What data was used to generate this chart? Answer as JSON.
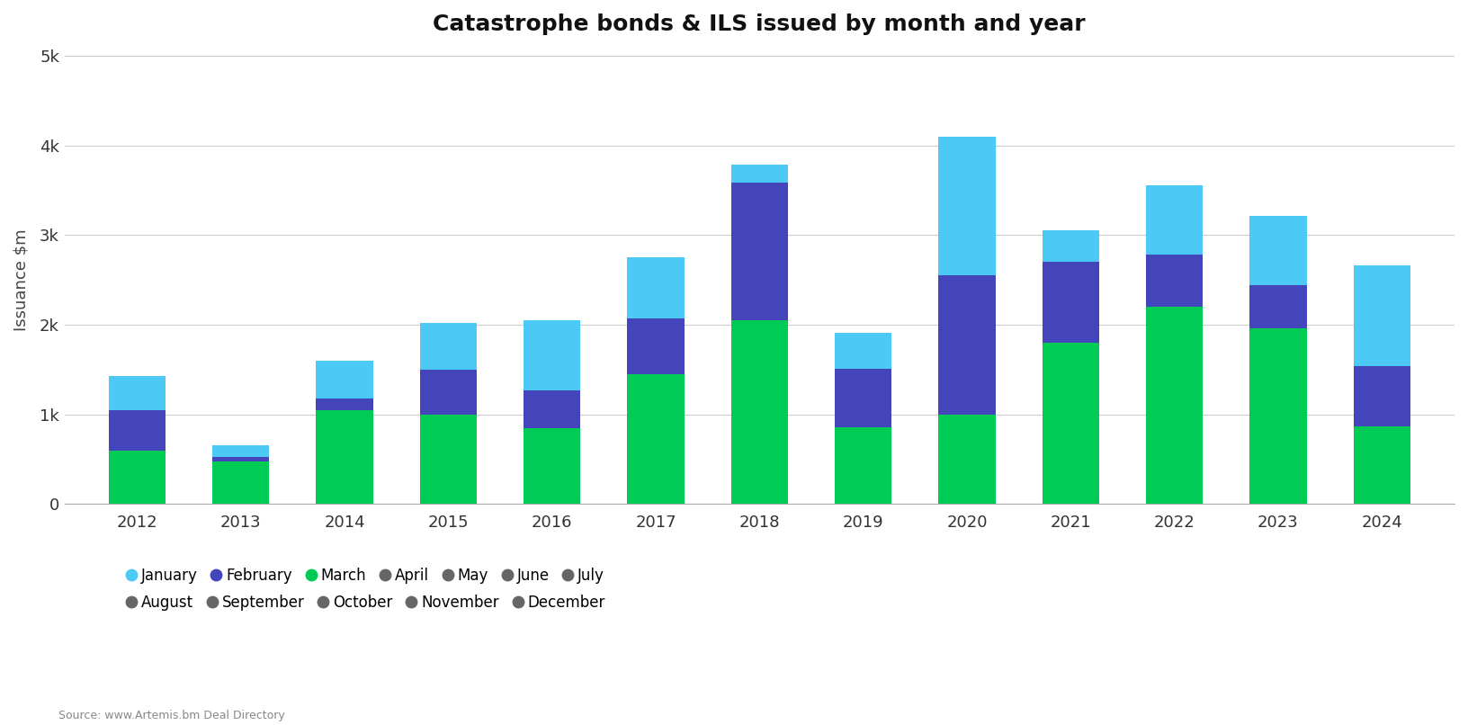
{
  "title": "Catastrophe bonds & ILS issued by month and year",
  "ylabel": "Issuance $m",
  "source": "Source: www.Artemis.bm Deal Directory",
  "years": [
    2012,
    2013,
    2014,
    2015,
    2016,
    2017,
    2018,
    2019,
    2020,
    2021,
    2022,
    2023,
    2024
  ],
  "months": [
    "January",
    "February",
    "March",
    "April",
    "May",
    "June",
    "July",
    "August",
    "September",
    "October",
    "November",
    "December"
  ],
  "colors": {
    "January": "#4dc9f6",
    "February": "#4444bb",
    "March": "#00cc55",
    "April": "#666666",
    "May": "#666666",
    "June": "#666666",
    "July": "#666666",
    "August": "#666666",
    "September": "#666666",
    "October": "#666666",
    "November": "#666666",
    "December": "#666666"
  },
  "stack_order": [
    "March",
    "February",
    "January",
    "April",
    "May",
    "June",
    "July",
    "August",
    "September",
    "October",
    "November",
    "December"
  ],
  "data": {
    "March": [
      600,
      480,
      1050,
      1000,
      850,
      1450,
      2050,
      860,
      1000,
      1800,
      2200,
      1960,
      870
    ],
    "February": [
      450,
      50,
      130,
      500,
      420,
      620,
      1530,
      650,
      1550,
      900,
      580,
      480,
      670
    ],
    "January": [
      380,
      130,
      420,
      520,
      780,
      680,
      200,
      400,
      1550,
      350,
      770,
      770,
      1120
    ],
    "April": [
      0,
      0,
      0,
      0,
      0,
      0,
      0,
      0,
      0,
      0,
      0,
      0,
      0
    ],
    "May": [
      0,
      0,
      0,
      0,
      0,
      0,
      0,
      0,
      0,
      0,
      0,
      0,
      0
    ],
    "June": [
      0,
      0,
      0,
      0,
      0,
      0,
      0,
      0,
      0,
      0,
      0,
      0,
      0
    ],
    "July": [
      0,
      0,
      0,
      0,
      0,
      0,
      0,
      0,
      0,
      0,
      0,
      0,
      0
    ],
    "August": [
      0,
      0,
      0,
      0,
      0,
      0,
      0,
      0,
      0,
      0,
      0,
      0,
      0
    ],
    "September": [
      0,
      0,
      0,
      0,
      0,
      0,
      0,
      0,
      0,
      0,
      0,
      0,
      0
    ],
    "October": [
      0,
      0,
      0,
      0,
      0,
      0,
      0,
      0,
      0,
      0,
      0,
      0,
      0
    ],
    "November": [
      0,
      0,
      0,
      0,
      0,
      0,
      0,
      0,
      0,
      0,
      0,
      0,
      0
    ],
    "December": [
      0,
      0,
      0,
      0,
      0,
      0,
      0,
      0,
      0,
      0,
      0,
      0,
      0
    ]
  },
  "ylim": [
    0,
    5000
  ],
  "yticks": [
    0,
    1000,
    2000,
    3000,
    4000,
    5000
  ],
  "ytick_labels": [
    "0",
    "1k",
    "2k",
    "3k",
    "4k",
    "5k"
  ],
  "background_color": "#ffffff",
  "grid_color": "#cccccc",
  "bar_width": 0.55,
  "legend_row1": [
    "January",
    "February",
    "March",
    "April",
    "May",
    "June",
    "July"
  ],
  "legend_row2": [
    "August",
    "September",
    "October",
    "November",
    "December"
  ]
}
